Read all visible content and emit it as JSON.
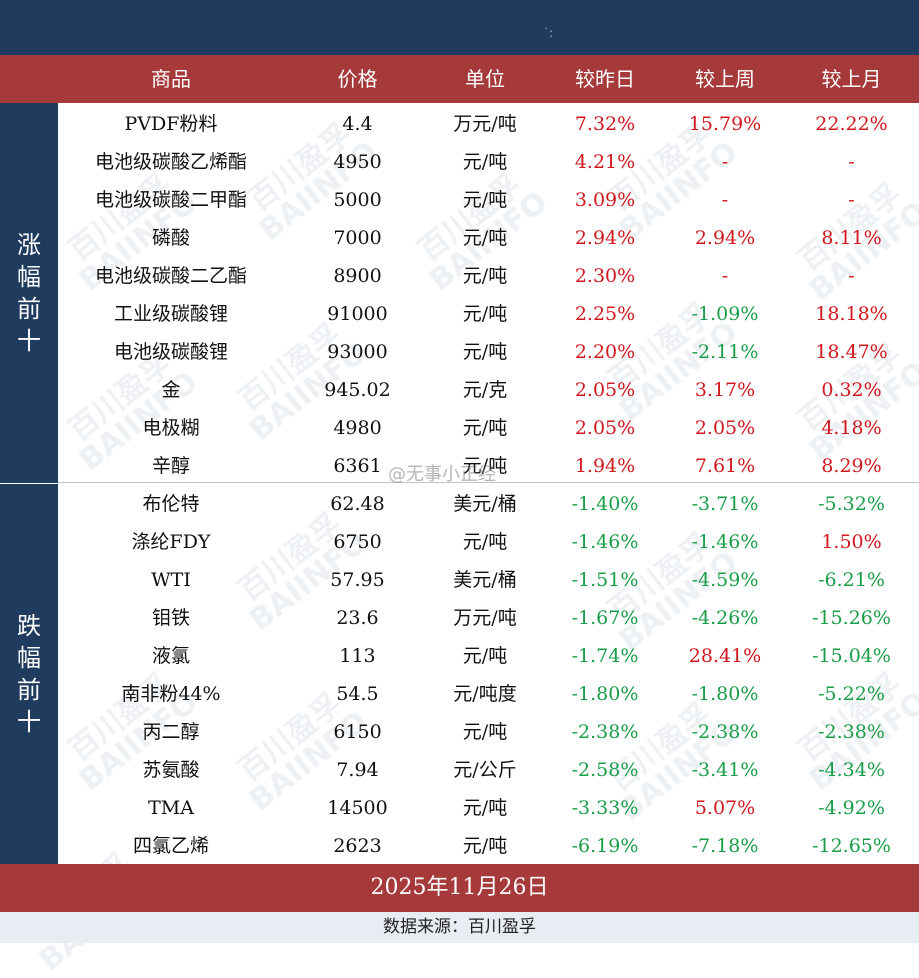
{
  "header": {
    "columns": [
      "商品",
      "价格",
      "单位",
      "较昨日",
      "较上周",
      "较上月"
    ]
  },
  "side_labels": {
    "top": [
      "涨",
      "幅",
      "前",
      "十"
    ],
    "bottom": [
      "跌",
      "幅",
      "前",
      "十"
    ]
  },
  "rows_up": [
    {
      "name": "PVDF粉料",
      "price": "4.4",
      "unit": "万元/吨",
      "day": "7.32%",
      "week": "15.79%",
      "month": "22.22%"
    },
    {
      "name": "电池级碳酸乙烯酯",
      "price": "4950",
      "unit": "元/吨",
      "day": "4.21%",
      "week": "-",
      "month": "-"
    },
    {
      "name": "电池级碳酸二甲酯",
      "price": "5000",
      "unit": "元/吨",
      "day": "3.09%",
      "week": "-",
      "month": "-"
    },
    {
      "name": "磷酸",
      "price": "7000",
      "unit": "元/吨",
      "day": "2.94%",
      "week": "2.94%",
      "month": "8.11%"
    },
    {
      "name": "电池级碳酸二乙酯",
      "price": "8900",
      "unit": "元/吨",
      "day": "2.30%",
      "week": "-",
      "month": "-"
    },
    {
      "name": "工业级碳酸锂",
      "price": "91000",
      "unit": "元/吨",
      "day": "2.25%",
      "week": "-1.09%",
      "month": "18.18%"
    },
    {
      "name": "电池级碳酸锂",
      "price": "93000",
      "unit": "元/吨",
      "day": "2.20%",
      "week": "-2.11%",
      "month": "18.47%"
    },
    {
      "name": "金",
      "price": "945.02",
      "unit": "元/克",
      "day": "2.05%",
      "week": "3.17%",
      "month": "0.32%"
    },
    {
      "name": "电极糊",
      "price": "4980",
      "unit": "元/吨",
      "day": "2.05%",
      "week": "2.05%",
      "month": "4.18%"
    },
    {
      "name": "辛醇",
      "price": "6361",
      "unit": "元/吨",
      "day": "1.94%",
      "week": "7.61%",
      "month": "8.29%"
    }
  ],
  "rows_down": [
    {
      "name": "布伦特",
      "price": "62.48",
      "unit": "美元/桶",
      "day": "-1.40%",
      "week": "-3.71%",
      "month": "-5.32%"
    },
    {
      "name": "涤纶FDY",
      "price": "6750",
      "unit": "元/吨",
      "day": "-1.46%",
      "week": "-1.46%",
      "month": "1.50%"
    },
    {
      "name": "WTI",
      "price": "57.95",
      "unit": "美元/桶",
      "day": "-1.51%",
      "week": "-4.59%",
      "month": "-6.21%"
    },
    {
      "name": "钼铁",
      "price": "23.6",
      "unit": "万元/吨",
      "day": "-1.67%",
      "week": "-4.26%",
      "month": "-15.26%"
    },
    {
      "name": "液氯",
      "price": "113",
      "unit": "元/吨",
      "day": "-1.74%",
      "week": "28.41%",
      "month": "-15.04%"
    },
    {
      "name": "南非粉44%",
      "price": "54.5",
      "unit": "元/吨度",
      "day": "-1.80%",
      "week": "-1.80%",
      "month": "-5.22%"
    },
    {
      "name": "丙二醇",
      "price": "6150",
      "unit": "元/吨",
      "day": "-2.38%",
      "week": "-2.38%",
      "month": "-2.38%"
    },
    {
      "name": "苏氨酸",
      "price": "7.94",
      "unit": "元/公斤",
      "day": "-2.58%",
      "week": "-3.41%",
      "month": "-4.34%"
    },
    {
      "name": "TMA",
      "price": "14500",
      "unit": "元/吨",
      "day": "-3.33%",
      "week": "5.07%",
      "month": "-4.92%"
    },
    {
      "name": "四氯乙烯",
      "price": "2623",
      "unit": "元/吨",
      "day": "-6.19%",
      "week": "-7.18%",
      "month": "-12.65%"
    }
  ],
  "footer": {
    "date": "2025年11月26日",
    "source": "数据来源：百川盈孚"
  },
  "overlay": {
    "weibo": "@无事小正经",
    "watermark_cn": "百川盈孚",
    "watermark_en": "BAIINFO"
  },
  "colors": {
    "navy": "#1f3b5e",
    "header_red": "#a63a3a",
    "up": "#d0181e",
    "down": "#1a9d48"
  }
}
